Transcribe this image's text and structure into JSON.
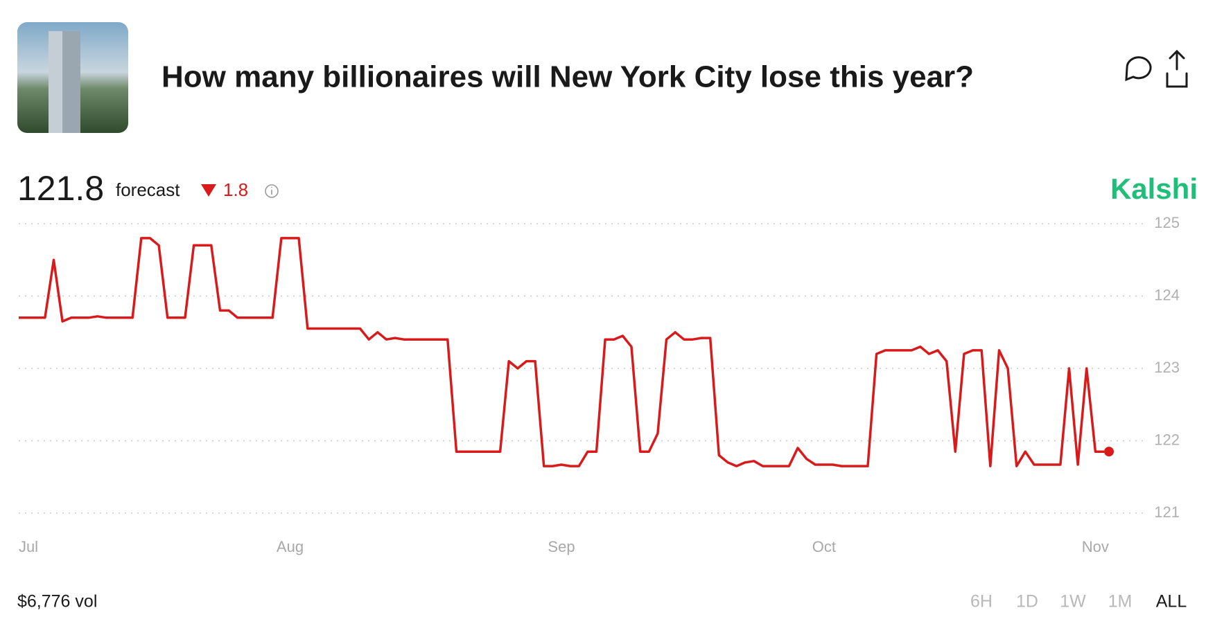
{
  "header": {
    "title": "How many billionaires will New York City lose this year?"
  },
  "forecast": {
    "value": "121.8",
    "label": "forecast",
    "change": "1.8"
  },
  "brand": "Kalshi",
  "chart_data": {
    "type": "line",
    "color": "#d91a1a",
    "grid": true,
    "x": [
      0,
      1,
      2,
      3,
      4,
      5,
      6,
      7,
      8,
      9,
      10,
      11,
      12,
      13,
      14,
      15,
      16,
      17,
      18,
      19,
      20,
      21,
      22,
      23,
      24,
      25,
      26,
      27,
      28,
      29,
      30,
      31,
      32,
      33,
      34,
      35,
      36,
      37,
      38,
      39,
      40,
      41,
      42,
      43,
      44,
      45,
      46,
      47,
      48,
      49,
      50,
      51,
      52,
      53,
      54,
      55,
      56,
      57,
      58,
      59,
      60,
      61,
      62,
      63,
      64,
      65,
      66,
      67,
      68,
      69,
      70,
      71,
      72,
      73,
      74,
      75,
      76,
      77,
      78,
      79,
      80,
      81,
      82,
      83,
      84,
      85,
      86,
      87,
      88,
      89,
      90,
      91,
      92,
      93,
      94,
      95,
      96,
      97,
      98,
      99,
      100,
      101,
      102,
      103,
      104,
      105,
      106,
      107,
      108,
      109,
      110,
      111,
      112,
      113,
      114,
      115,
      116,
      117,
      118,
      119,
      120,
      121,
      122,
      123,
      124
    ],
    "values": [
      123.7,
      123.7,
      123.7,
      123.7,
      124.5,
      123.65,
      123.7,
      123.7,
      123.7,
      123.72,
      123.7,
      123.7,
      123.7,
      123.7,
      124.8,
      124.8,
      124.7,
      123.7,
      123.7,
      123.7,
      124.7,
      124.7,
      124.7,
      123.8,
      123.8,
      123.7,
      123.7,
      123.7,
      123.7,
      123.7,
      124.8,
      124.8,
      124.8,
      123.55,
      123.55,
      123.55,
      123.55,
      123.55,
      123.55,
      123.55,
      123.4,
      123.5,
      123.4,
      123.42,
      123.4,
      123.4,
      123.4,
      123.4,
      123.4,
      123.4,
      121.85,
      121.85,
      121.85,
      121.85,
      121.85,
      121.85,
      123.1,
      123.0,
      123.1,
      123.1,
      121.65,
      121.65,
      121.67,
      121.65,
      121.65,
      121.85,
      121.85,
      123.4,
      123.4,
      123.45,
      123.3,
      121.85,
      121.85,
      122.1,
      123.4,
      123.5,
      123.4,
      123.4,
      123.42,
      123.42,
      121.8,
      121.7,
      121.65,
      121.7,
      121.72,
      121.65,
      121.65,
      121.65,
      121.65,
      121.9,
      121.75,
      121.67,
      121.67,
      121.67,
      121.65,
      121.65,
      121.65,
      121.65,
      123.2,
      123.25,
      123.25,
      123.25,
      123.25,
      123.3,
      123.2,
      123.25,
      123.1,
      121.85,
      123.2,
      123.25,
      123.25,
      121.65,
      123.25,
      123.0,
      121.65,
      121.85,
      121.67,
      121.67,
      121.67,
      121.67,
      123.0,
      121.67,
      123.0,
      121.85,
      121.85
    ],
    "xlim": [
      0,
      124
    ],
    "xticks": [
      {
        "value": 0,
        "label": "Jul"
      },
      {
        "value": 31,
        "label": "Aug"
      },
      {
        "value": 62,
        "label": "Sep"
      },
      {
        "value": 92,
        "label": "Oct"
      },
      {
        "value": 123,
        "label": "Nov"
      }
    ],
    "ylim": [
      121,
      125
    ],
    "yticks": [
      121,
      122,
      123,
      124,
      125
    ]
  },
  "footer": {
    "volume": "$6,776 vol",
    "ranges": [
      "6H",
      "1D",
      "1W",
      "1M",
      "ALL"
    ]
  }
}
